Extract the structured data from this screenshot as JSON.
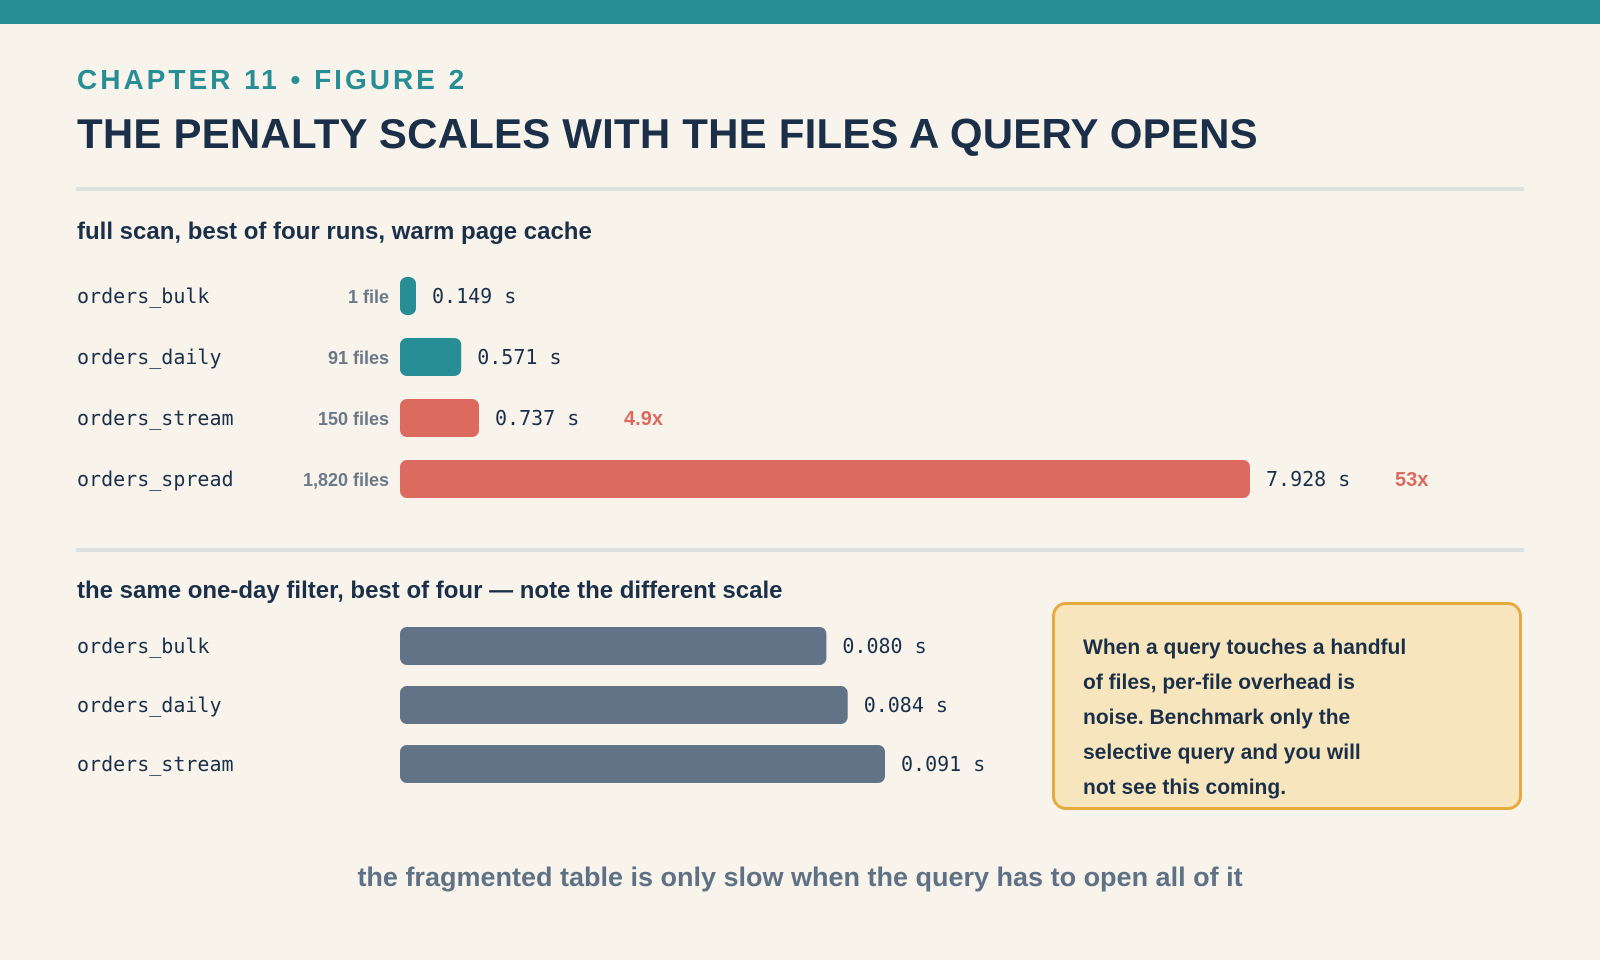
{
  "colors": {
    "background": "#f8f4ec",
    "top_bar": "#268e94",
    "kicker": "#268e94",
    "title": "#1b3048",
    "teal_bar": "#268e94",
    "coral_bar": "#dd6a5f",
    "slate_bar": "#627387",
    "multiplier": "#dd6a5f",
    "callout_fill": "#f7e5bd",
    "callout_border": "#e5ab3e",
    "footer": "#5f7285"
  },
  "header": {
    "kicker": "CHAPTER 11 • FIGURE 2",
    "title": "THE PENALTY SCALES WITH THE FILES A QUERY OPENS"
  },
  "callout": {
    "lines": [
      "When a query touches a handful",
      "of files, per-file overhead is",
      "noise. Benchmark only the",
      "selective query and you will",
      "not see this coming."
    ]
  },
  "footer": {
    "text": "the fragmented table is only slow when the query has to open all of it"
  },
  "chart_data": [
    {
      "type": "bar",
      "orientation": "horizontal",
      "title": "full scan, best of four runs, warm page cache",
      "categories": [
        "orders_bulk",
        "orders_daily",
        "orders_stream",
        "orders_spread"
      ],
      "file_counts": [
        "1 file",
        "91 files",
        "150 files",
        "1,820 files"
      ],
      "values": [
        0.149,
        0.571,
        0.737,
        7.928
      ],
      "value_labels": [
        "0.149 s",
        "0.571 s",
        "0.737 s",
        "7.928 s"
      ],
      "multipliers": [
        "",
        "",
        "4.9x",
        "53x"
      ],
      "bar_colors": [
        "#268e94",
        "#268e94",
        "#dd6a5f",
        "#dd6a5f"
      ],
      "unit": "s",
      "xlim": [
        0,
        7.928
      ],
      "grid": false
    },
    {
      "type": "bar",
      "orientation": "horizontal",
      "title": "the same one-day filter, best of four — note the different scale",
      "categories": [
        "orders_bulk",
        "orders_daily",
        "orders_stream"
      ],
      "values": [
        0.08,
        0.084,
        0.091
      ],
      "value_labels": [
        "0.080 s",
        "0.084 s",
        "0.091 s"
      ],
      "bar_colors": [
        "#627387",
        "#627387",
        "#627387"
      ],
      "unit": "s",
      "xlim": [
        0,
        0.091
      ],
      "grid": false
    }
  ]
}
